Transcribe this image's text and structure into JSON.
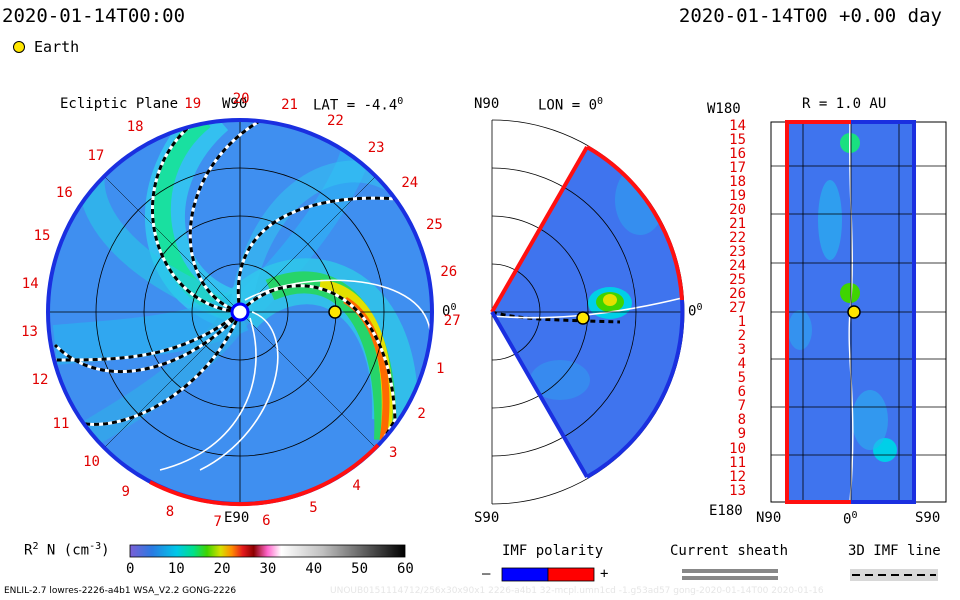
{
  "header": {
    "left_timestamp": "2020-01-14T00:00",
    "right_timestamp": "2020-01-14T00 +0.00 day",
    "legend_marker_label": "Earth"
  },
  "ecliptic_panel": {
    "title": "Ecliptic Plane",
    "top_label": "W90",
    "bottom_label": "E90",
    "lat_text": "LAT = -4.4",
    "lat_superscript": "0",
    "right_label": "0",
    "right_label_sup": "0",
    "rotation_numbers": [
      "19",
      "20",
      "21",
      "22",
      "23",
      "24",
      "25",
      "26",
      "27",
      "1",
      "2",
      "3",
      "4",
      "5",
      "6",
      "7",
      "8",
      "9",
      "10",
      "11",
      "12",
      "13",
      "14",
      "15",
      "16",
      "17",
      "18"
    ]
  },
  "meridional_panel": {
    "top_left": "N90",
    "lon_text": "LON = 0",
    "lon_superscript": "0",
    "right_label": "0",
    "right_label_sup": "0",
    "bottom_left": "S90"
  },
  "radial_panel": {
    "title": "R = 1.0 AU",
    "top_left": "W180",
    "bottom_left": "E180",
    "x_labels": [
      "N90",
      "0",
      "S90"
    ],
    "x_label_mid_sup": "0",
    "rotation_numbers": [
      "14",
      "15",
      "16",
      "17",
      "18",
      "19",
      "20",
      "21",
      "22",
      "23",
      "24",
      "25",
      "26",
      "27",
      "1",
      "2",
      "3",
      "4",
      "5",
      "6",
      "7",
      "8",
      "9",
      "10",
      "11",
      "12",
      "13"
    ]
  },
  "colorbar": {
    "label": "R",
    "label_sup": "2",
    "label_rest": "N (cm",
    "label_exp": "-3",
    "label_end": ")",
    "ticks": [
      "0",
      "10",
      "20",
      "30",
      "40",
      "50",
      "60"
    ],
    "stops": [
      "#7b5fd6",
      "#2a7ae2",
      "#00c8e8",
      "#00e08a",
      "#3fd400",
      "#d8e000",
      "#ff8c00",
      "#e41a1c",
      "#ff66cc",
      "#ffffff",
      "#c0c0c0",
      "#808080",
      "#404040",
      "#000000"
    ]
  },
  "imf_polarity": {
    "title": "IMF polarity",
    "minus": "–",
    "plus": "+",
    "colors": [
      "#0000ff",
      "#ff0000"
    ]
  },
  "current_sheath": {
    "title": "Current sheath"
  },
  "imf_line": {
    "title": "3D IMF line"
  },
  "footer": {
    "model_text": "ENLIL-2.7 lowres-2226-a4b1 WSA_V2.2 GONG-2226",
    "faint_text": "UNOUB0151114712/256x30x90x1 2226-a4b1 32-mcpl.umn1cd -1.g53ad57 gong-2020-01-14T00   2020-01-16"
  }
}
